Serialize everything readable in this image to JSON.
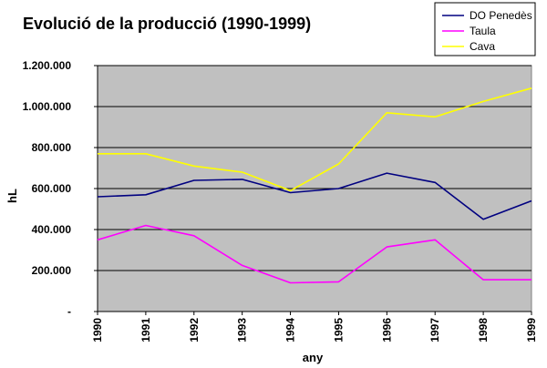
{
  "chart_data": {
    "type": "line",
    "title": "Evolució de la producció (1990-1999)",
    "xlabel": "any",
    "ylabel": "hL",
    "categories": [
      "1990",
      "1991",
      "1992",
      "1993",
      "1994",
      "1995",
      "1996",
      "1997",
      "1998",
      "1999"
    ],
    "ylim": [
      0,
      1200000
    ],
    "yticks": [
      0,
      200000,
      400000,
      600000,
      800000,
      1000000,
      1200000
    ],
    "ytick_labels": [
      "-",
      "200.000",
      "400.000",
      "600.000",
      "800.000",
      "1.000.000",
      "1.200.000"
    ],
    "grid": true,
    "legend_position": "top-right",
    "plot_background": "#c0c0c0",
    "series": [
      {
        "name": "DO Penedès",
        "color": "#000080",
        "values": [
          560000,
          570000,
          640000,
          645000,
          580000,
          600000,
          675000,
          630000,
          450000,
          540000
        ]
      },
      {
        "name": "Taula",
        "color": "#ff00ff",
        "values": [
          350000,
          420000,
          370000,
          225000,
          140000,
          145000,
          315000,
          350000,
          155000,
          155000
        ]
      },
      {
        "name": "Cava",
        "color": "#ffff00",
        "values": [
          770000,
          770000,
          710000,
          680000,
          590000,
          720000,
          970000,
          950000,
          1025000,
          1090000
        ]
      }
    ]
  }
}
